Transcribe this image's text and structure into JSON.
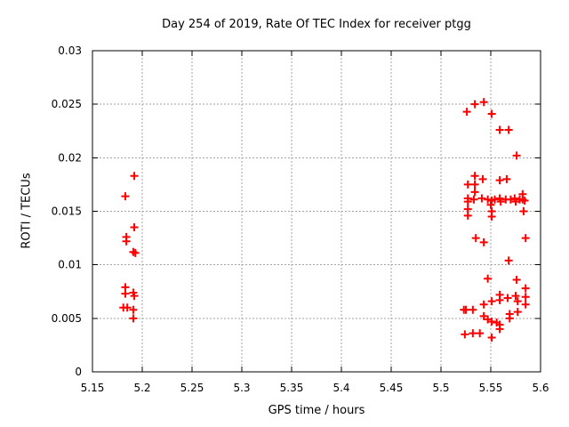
{
  "chart_data": {
    "type": "scatter",
    "title": "Day 254 of 2019, Rate Of TEC Index for receiver ptgg",
    "xlabel": "GPS time / hours",
    "ylabel": "ROTI / TECUs",
    "xlim": [
      5.15,
      5.6
    ],
    "ylim": [
      0,
      0.03
    ],
    "x_ticks": [
      "5.15",
      "5.2",
      "5.25",
      "5.3",
      "5.35",
      "5.4",
      "5.45",
      "5.5",
      "5.55",
      "5.6"
    ],
    "y_ticks": [
      "0",
      "0.005",
      "0.01",
      "0.015",
      "0.02",
      "0.025",
      "0.03"
    ],
    "grid": true,
    "legend": null,
    "colors": {
      "marker": "#ff0000",
      "grid": "#a3a3a3",
      "axis": "#000000",
      "background": "#ffffff"
    },
    "series": [
      {
        "name": "ROTI",
        "marker": "plus",
        "color": "#ff0000",
        "points": [
          [
            5.192,
            0.0183
          ],
          [
            5.183,
            0.0164
          ],
          [
            5.192,
            0.0135
          ],
          [
            5.184,
            0.0126
          ],
          [
            5.184,
            0.0122
          ],
          [
            5.191,
            0.0112
          ],
          [
            5.193,
            0.0111
          ],
          [
            5.183,
            0.0079
          ],
          [
            5.191,
            0.0074
          ],
          [
            5.183,
            0.0073
          ],
          [
            5.192,
            0.0071
          ],
          [
            5.181,
            0.006
          ],
          [
            5.185,
            0.006
          ],
          [
            5.191,
            0.0058
          ],
          [
            5.191,
            0.005
          ],
          [
            5.526,
            0.0243
          ],
          [
            5.534,
            0.025
          ],
          [
            5.543,
            0.0252
          ],
          [
            5.551,
            0.0241
          ],
          [
            5.559,
            0.0226
          ],
          [
            5.568,
            0.0226
          ],
          [
            5.576,
            0.0202
          ],
          [
            5.534,
            0.0183
          ],
          [
            5.542,
            0.018
          ],
          [
            5.559,
            0.0179
          ],
          [
            5.566,
            0.018
          ],
          [
            5.527,
            0.0175
          ],
          [
            5.534,
            0.0175
          ],
          [
            5.534,
            0.0168
          ],
          [
            5.527,
            0.0162
          ],
          [
            5.527,
            0.0159
          ],
          [
            5.533,
            0.0161
          ],
          [
            5.541,
            0.0162
          ],
          [
            5.547,
            0.0161
          ],
          [
            5.551,
            0.016
          ],
          [
            5.554,
            0.0161
          ],
          [
            5.559,
            0.0162
          ],
          [
            5.56,
            0.0159
          ],
          [
            5.565,
            0.0161
          ],
          [
            5.57,
            0.0161
          ],
          [
            5.574,
            0.0162
          ],
          [
            5.575,
            0.0159
          ],
          [
            5.579,
            0.0161
          ],
          [
            5.582,
            0.0166
          ],
          [
            5.582,
            0.0161
          ],
          [
            5.584,
            0.016
          ],
          [
            5.55,
            0.0156
          ],
          [
            5.527,
            0.0152
          ],
          [
            5.583,
            0.015
          ],
          [
            5.551,
            0.015
          ],
          [
            5.527,
            0.0146
          ],
          [
            5.551,
            0.0145
          ],
          [
            5.535,
            0.0125
          ],
          [
            5.543,
            0.0121
          ],
          [
            5.585,
            0.0125
          ],
          [
            5.568,
            0.0104
          ],
          [
            5.547,
            0.0087
          ],
          [
            5.576,
            0.0086
          ],
          [
            5.585,
            0.0078
          ],
          [
            5.559,
            0.0072
          ],
          [
            5.575,
            0.0071
          ],
          [
            5.585,
            0.007
          ],
          [
            5.567,
            0.0069
          ],
          [
            5.559,
            0.0067
          ],
          [
            5.551,
            0.0066
          ],
          [
            5.577,
            0.0066
          ],
          [
            5.543,
            0.0063
          ],
          [
            5.585,
            0.0063
          ],
          [
            5.523,
            0.0058
          ],
          [
            5.525,
            0.0058
          ],
          [
            5.532,
            0.0058
          ],
          [
            5.569,
            0.0054
          ],
          [
            5.543,
            0.0052
          ],
          [
            5.577,
            0.0056
          ],
          [
            5.547,
            0.0049
          ],
          [
            5.551,
            0.0047
          ],
          [
            5.556,
            0.0046
          ],
          [
            5.569,
            0.005
          ],
          [
            5.559,
            0.0044
          ],
          [
            5.559,
            0.004
          ],
          [
            5.524,
            0.0035
          ],
          [
            5.532,
            0.0036
          ],
          [
            5.539,
            0.0036
          ],
          [
            5.551,
            0.0032
          ]
        ]
      }
    ]
  }
}
